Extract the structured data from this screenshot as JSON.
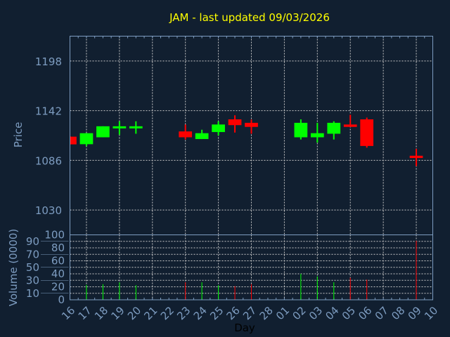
{
  "chart_data": [
    {
      "type": "candlestick",
      "title": "JAM - last updated 09/03/2026",
      "ylabel": "Price",
      "xlabel": "Day",
      "ylim": [
        1002,
        1226
      ],
      "y_ticks": [
        1030,
        1086,
        1142,
        1198
      ],
      "categories": [
        "16",
        "17",
        "18",
        "19",
        "20",
        "21",
        "22",
        "23",
        "24",
        "25",
        "26",
        "27",
        "28",
        "01",
        "02",
        "03",
        "04",
        "05",
        "06",
        "07",
        "08",
        "09",
        "10"
      ],
      "candles": [
        {
          "day": "16",
          "open": 1112.7,
          "high": 1113,
          "low": 1104,
          "close": 1104
        },
        {
          "day": "17",
          "open": 1104.2,
          "high": 1116.6,
          "low": 1102,
          "close": 1116.6
        },
        {
          "day": "18",
          "open": 1112,
          "high": 1124.4,
          "low": 1112,
          "close": 1124.4
        },
        {
          "day": "19",
          "open": 1122,
          "high": 1130,
          "low": 1115,
          "close": 1124.4
        },
        {
          "day": "20",
          "open": 1122,
          "high": 1130,
          "low": 1116,
          "close": 1124.4
        },
        {
          "day": "23",
          "open": 1118.6,
          "high": 1126.4,
          "low": 1109.5,
          "close": 1112
        },
        {
          "day": "24",
          "open": 1110,
          "high": 1120.5,
          "low": 1110,
          "close": 1116.6
        },
        {
          "day": "25",
          "open": 1117.9,
          "high": 1130,
          "low": 1114,
          "close": 1126.4
        },
        {
          "day": "26",
          "open": 1132.2,
          "high": 1136.8,
          "low": 1117.3,
          "close": 1125.7
        },
        {
          "day": "27",
          "open": 1128.3,
          "high": 1132,
          "low": 1116,
          "close": 1123.7
        },
        {
          "day": "02",
          "open": 1112,
          "high": 1132.2,
          "low": 1109.5,
          "close": 1128.3
        },
        {
          "day": "03",
          "open": 1112,
          "high": 1128.3,
          "low": 1106,
          "close": 1116.6
        },
        {
          "day": "04",
          "open": 1116,
          "high": 1130,
          "low": 1109.5,
          "close": 1128.3
        },
        {
          "day": "05",
          "open": 1126.4,
          "high": 1137.4,
          "low": 1123.7,
          "close": 1123.7
        },
        {
          "day": "06",
          "open": 1132.2,
          "high": 1134.2,
          "low": 1100.3,
          "close": 1102.2
        },
        {
          "day": "09",
          "open": 1091.2,
          "high": 1099,
          "low": 1079.5,
          "close": 1088.6
        }
      ]
    },
    {
      "type": "bar",
      "ylabel": "Volume (0000)",
      "xlabel": "Day",
      "ylim": [
        0,
        100
      ],
      "y_ticks": [
        0,
        10,
        20,
        30,
        40,
        50,
        60,
        70,
        80,
        90,
        100
      ],
      "volumes": [
        {
          "day": "17",
          "value": 23,
          "dir": "up"
        },
        {
          "day": "18",
          "value": 24,
          "dir": "up"
        },
        {
          "day": "19",
          "value": 27,
          "dir": "up"
        },
        {
          "day": "20",
          "value": 22.5,
          "dir": "up"
        },
        {
          "day": "23",
          "value": 27,
          "dir": "down"
        },
        {
          "day": "24",
          "value": 27,
          "dir": "up"
        },
        {
          "day": "25",
          "value": 22.5,
          "dir": "up"
        },
        {
          "day": "26",
          "value": 21,
          "dir": "down"
        },
        {
          "day": "27",
          "value": 24,
          "dir": "down"
        },
        {
          "day": "02",
          "value": 40,
          "dir": "up"
        },
        {
          "day": "03",
          "value": 36,
          "dir": "up"
        },
        {
          "day": "04",
          "value": 27,
          "dir": "up"
        },
        {
          "day": "05",
          "value": 34,
          "dir": "down"
        },
        {
          "day": "06",
          "value": 31,
          "dir": "down"
        },
        {
          "day": "09",
          "value": 91,
          "dir": "down"
        }
      ]
    }
  ],
  "colors": {
    "up": "#00ff00",
    "down": "#ff0000",
    "title": "#ffff00",
    "axis": "#7d9cc0",
    "background": "#111f30"
  }
}
